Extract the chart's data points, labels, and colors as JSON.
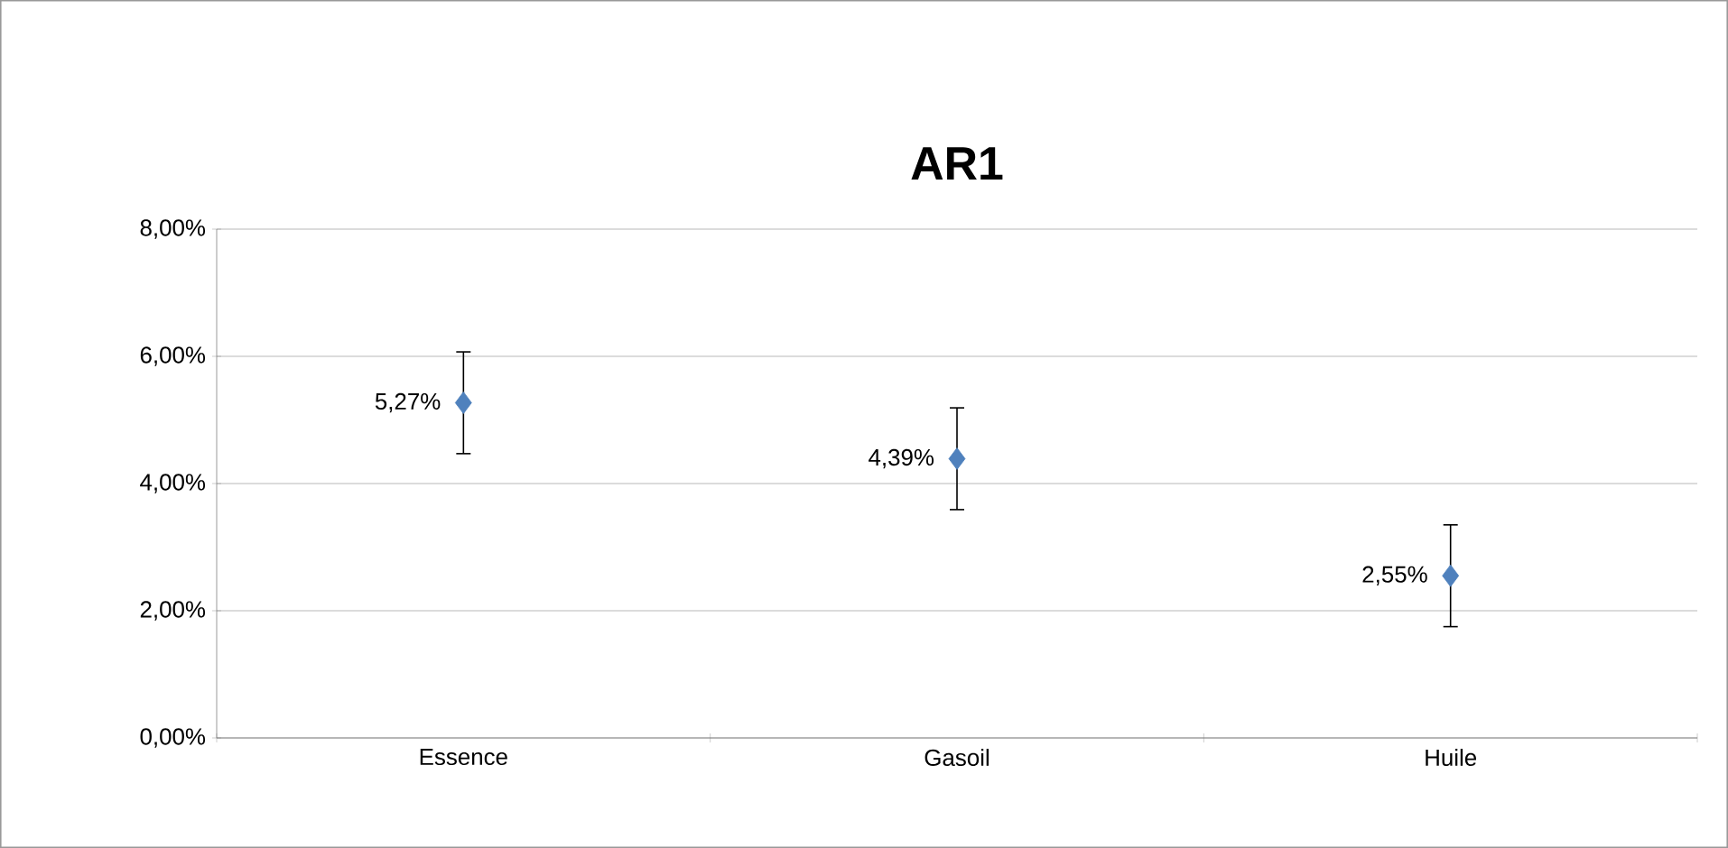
{
  "chart_data": {
    "type": "scatter",
    "title": "AR1",
    "categories": [
      "Essence",
      "Gasoil",
      "Huile"
    ],
    "values": [
      5.27,
      4.39,
      2.55
    ],
    "errors": [
      0.8,
      0.8,
      0.8
    ],
    "value_labels": [
      "5,27%",
      "4,39%",
      "2,55%"
    ],
    "color": "#4f81bd",
    "marker": "diamond",
    "grid": "y",
    "ylim": [
      0,
      8
    ],
    "yticks": [
      {
        "value": 0,
        "label": "0,00%"
      },
      {
        "value": 2,
        "label": "2,00%"
      },
      {
        "value": 4,
        "label": "4,00%"
      },
      {
        "value": 6,
        "label": "6,00%"
      },
      {
        "value": 8,
        "label": "8,00%"
      }
    ]
  }
}
